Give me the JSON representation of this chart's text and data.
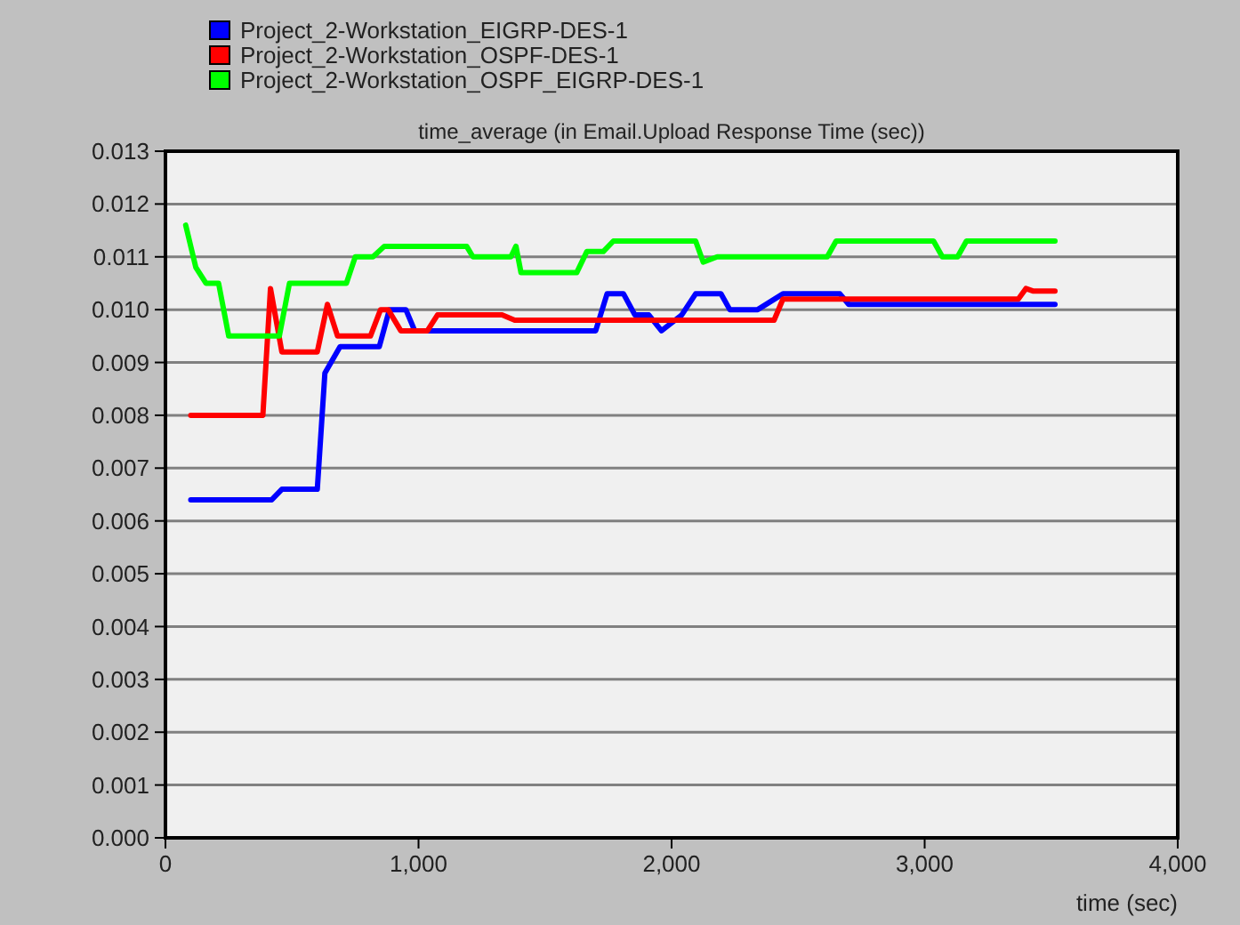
{
  "chart_data": {
    "type": "line",
    "title": "time_average (in Email.Upload Response Time (sec))",
    "xlabel": "time (sec)",
    "legend": "top left",
    "grid": "y",
    "line_style": "solid",
    "marker": "none",
    "xlim": [
      0,
      4000
    ],
    "xticks": [
      0,
      {
        "value": 1000,
        "label": "1,000"
      },
      {
        "value": 2000,
        "label": "2,000"
      },
      {
        "value": 3000,
        "label": "3,000"
      },
      {
        "value": 4000,
        "label": "4,000"
      }
    ],
    "ylim": [
      0,
      0.013
    ],
    "yticks": [
      {
        "value": 0,
        "label": "0.000"
      },
      {
        "value": 0.001,
        "label": "0.001"
      },
      {
        "value": 0.002,
        "label": "0.002"
      },
      {
        "value": 0.003,
        "label": "0.003"
      },
      {
        "value": 0.004,
        "label": "0.004"
      },
      {
        "value": 0.005,
        "label": "0.005"
      },
      {
        "value": 0.006,
        "label": "0.006"
      },
      {
        "value": 0.007,
        "label": "0.007"
      },
      {
        "value": 0.008,
        "label": "0.008"
      },
      {
        "value": 0.009,
        "label": "0.009"
      },
      {
        "value": 0.01,
        "label": "0.010"
      },
      {
        "value": 0.011,
        "label": "0.011"
      },
      {
        "value": 0.012,
        "label": "0.012"
      },
      {
        "value": 0.013,
        "label": "0.013"
      }
    ],
    "series": [
      {
        "name": "Project_2-Workstation_EIGRP-DES-1",
        "color": "#0000ff",
        "x": [
          100,
          420,
          460,
          600,
          630,
          690,
          845,
          885,
          950,
          985,
          1700,
          1745,
          1810,
          1855,
          1910,
          1960,
          2040,
          2095,
          2195,
          2230,
          2340,
          2440,
          2665,
          2700,
          3515
        ],
        "values": [
          0.0064,
          0.0064,
          0.0066,
          0.0066,
          0.0088,
          0.0093,
          0.0093,
          0.01,
          0.01,
          0.0096,
          0.0096,
          0.0103,
          0.0103,
          0.0099,
          0.0099,
          0.0096,
          0.0099,
          0.0103,
          0.0103,
          0.01,
          0.01,
          0.0103,
          0.0103,
          0.0101,
          0.0101
        ]
      },
      {
        "name": "Project_2-Workstation_OSPF-DES-1",
        "color": "#ff0000",
        "x": [
          100,
          385,
          415,
          460,
          600,
          640,
          680,
          810,
          850,
          880,
          930,
          1035,
          1075,
          1330,
          1380,
          2405,
          2440,
          3370,
          3400,
          3430,
          3515
        ],
        "values": [
          0.008,
          0.008,
          0.0104,
          0.0092,
          0.0092,
          0.0101,
          0.0095,
          0.0095,
          0.01,
          0.01,
          0.0096,
          0.0096,
          0.0099,
          0.0099,
          0.0098,
          0.0098,
          0.0102,
          0.0102,
          0.0104,
          0.01035,
          0.01035
        ]
      },
      {
        "name": "Project_2-Workstation_OSPF_EIGRP-DES-1",
        "color": "#00ff00",
        "x": [
          80,
          120,
          160,
          210,
          250,
          450,
          490,
          715,
          750,
          820,
          865,
          1190,
          1215,
          1365,
          1385,
          1405,
          1625,
          1665,
          1730,
          1770,
          2095,
          2125,
          2180,
          2615,
          2650,
          3035,
          3070,
          3130,
          3165,
          3515
        ],
        "values": [
          0.0116,
          0.0108,
          0.0105,
          0.0105,
          0.0095,
          0.0095,
          0.0105,
          0.0105,
          0.011,
          0.011,
          0.0112,
          0.0112,
          0.011,
          0.011,
          0.0112,
          0.0107,
          0.0107,
          0.0111,
          0.0111,
          0.0113,
          0.0113,
          0.0109,
          0.011,
          0.011,
          0.0113,
          0.0113,
          0.011,
          0.011,
          0.0113,
          0.0113
        ]
      }
    ]
  }
}
